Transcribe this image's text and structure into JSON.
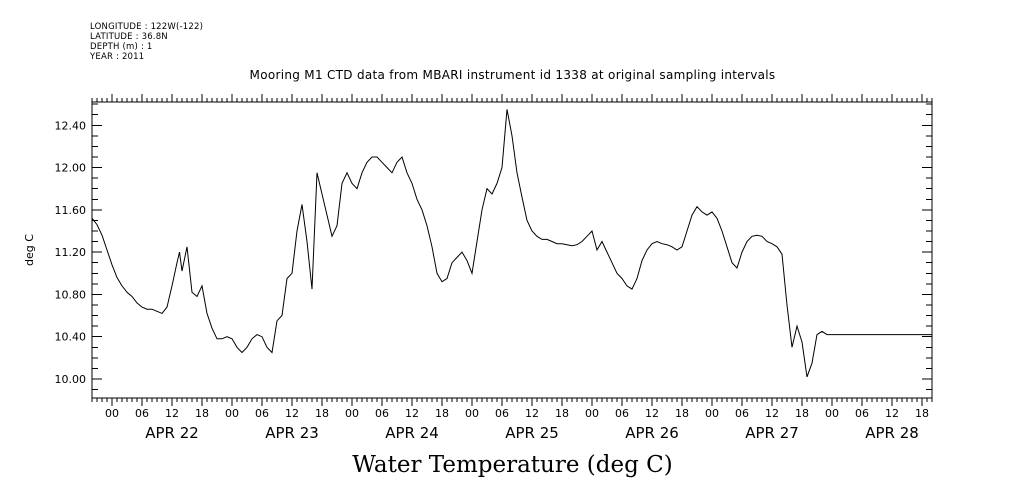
{
  "meta": {
    "longitude": "LONGITUDE : 122W(-122)",
    "latitude": "LATITUDE : 36.8N",
    "depth": "DEPTH (m) : 1",
    "year": "YEAR : 2011"
  },
  "chart_data": {
    "type": "line",
    "title": "Mooring M1 CTD data from MBARI instrument id 1338 at original sampling intervals",
    "footer_title": "Water Temperature (deg C)",
    "ylabel": "deg C",
    "xlabel": "",
    "x_range": [
      "Apr 21 20:00",
      "Apr 28 20:00"
    ],
    "ylim": [
      9.82,
      12.62
    ],
    "yticks": [
      10.0,
      10.4,
      10.8,
      11.2,
      11.6,
      12.0,
      12.4
    ],
    "ytick_labels": [
      "10.00",
      "10.40",
      "10.80",
      "11.20",
      "11.60",
      "12.00",
      "12.40"
    ],
    "hour_tick_labels": [
      "00",
      "06",
      "12",
      "18"
    ],
    "day_labels": [
      "APR 22",
      "APR 23",
      "APR 24",
      "APR 25",
      "APR 26",
      "APR 27",
      "APR 28"
    ],
    "grid": false,
    "legend": "none",
    "series": [
      {
        "x_hours_from_apr21_20h": [
          0,
          1,
          2,
          3,
          4,
          5,
          6,
          7,
          8,
          9,
          10,
          11,
          12,
          13,
          14,
          15,
          16,
          17,
          17.5,
          18,
          19,
          20,
          21,
          22,
          23,
          24,
          25,
          26,
          27,
          28,
          29,
          30,
          31,
          32,
          33,
          34,
          35,
          36,
          37,
          38,
          39,
          40,
          41,
          42,
          43,
          44,
          45,
          46,
          47,
          48,
          49,
          50,
          51,
          52,
          53,
          54,
          55,
          56,
          57,
          58,
          59,
          60,
          61,
          62,
          63,
          64,
          65,
          66,
          67,
          68,
          69,
          70,
          71,
          72,
          73,
          74,
          75,
          76,
          77,
          78,
          79,
          80,
          81,
          82,
          83,
          84,
          85,
          86,
          87,
          88,
          89,
          90,
          91,
          92,
          93,
          94,
          95,
          96,
          97,
          98,
          99,
          100,
          101,
          102,
          103,
          104,
          105,
          106,
          107,
          108,
          109,
          110,
          111,
          112,
          113,
          114,
          115,
          116,
          117,
          118,
          119,
          120,
          121,
          122,
          123,
          124,
          125,
          126,
          127,
          128,
          129,
          130,
          131,
          132,
          133,
          134,
          135,
          136,
          137,
          138,
          139,
          140,
          141,
          142,
          143,
          144,
          145,
          146,
          147,
          148,
          149,
          150,
          151,
          152,
          153,
          154,
          155,
          156,
          157,
          158,
          159,
          160,
          161,
          162,
          163,
          164,
          165,
          166,
          167,
          168
        ],
        "values": [
          11.52,
          11.46,
          11.36,
          11.22,
          11.08,
          10.96,
          10.88,
          10.82,
          10.78,
          10.72,
          10.68,
          10.66,
          10.66,
          10.64,
          10.62,
          10.68,
          10.88,
          11.1,
          11.2,
          11.02,
          11.25,
          10.82,
          10.78,
          10.88,
          10.62,
          10.48,
          10.38,
          10.38,
          10.4,
          10.38,
          10.3,
          10.25,
          10.3,
          10.38,
          10.42,
          10.4,
          10.3,
          10.25,
          10.55,
          10.6,
          10.95,
          11.0,
          11.4,
          11.65,
          11.3,
          10.85,
          11.95,
          11.75,
          11.55,
          11.35,
          11.45,
          11.85,
          11.95,
          11.85,
          11.8,
          11.95,
          12.05,
          12.1,
          12.1,
          12.05,
          12.0,
          11.95,
          12.05,
          12.1,
          11.95,
          11.85,
          11.7,
          11.6,
          11.45,
          11.25,
          11.0,
          10.92,
          10.95,
          11.1,
          11.15,
          11.2,
          11.12,
          11.0,
          11.3,
          11.6,
          11.8,
          11.75,
          11.85,
          12.0,
          12.55,
          12.3,
          11.95,
          11.72,
          11.5,
          11.4,
          11.35,
          11.32,
          11.32,
          11.3,
          11.28,
          11.28,
          11.27,
          11.26,
          11.27,
          11.3,
          11.35,
          11.4,
          11.22,
          11.3,
          11.2,
          11.1,
          11.0,
          10.95,
          10.88,
          10.85,
          10.95,
          11.12,
          11.22,
          11.28,
          11.3,
          11.28,
          11.27,
          11.25,
          11.22,
          11.25,
          11.4,
          11.55,
          11.63,
          11.58,
          11.55,
          11.58,
          11.52,
          11.4,
          11.25,
          11.1,
          11.05,
          11.2,
          11.3,
          11.35,
          11.36,
          11.35,
          11.3,
          11.28,
          11.25,
          11.18,
          10.7,
          10.3,
          10.5,
          10.35,
          10.02,
          10.15,
          10.42,
          10.45,
          10.42,
          10.42,
          10.42,
          10.42,
          10.42,
          10.42,
          10.42,
          10.42,
          10.42,
          10.42,
          10.42,
          10.42,
          10.42,
          10.42,
          10.42,
          10.42,
          10.42,
          10.42,
          10.42,
          10.42,
          10.42,
          10.42
        ]
      }
    ]
  }
}
